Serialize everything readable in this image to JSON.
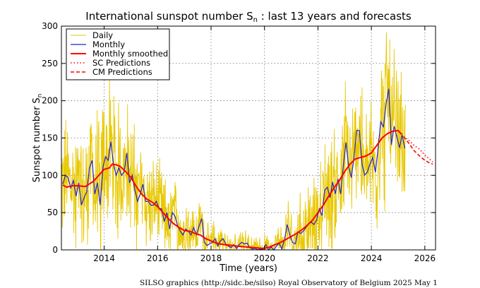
{
  "chart_data": {
    "type": "line",
    "title_main": "International sunspot number S",
    "title_sub": "n",
    "title_rest": " : last 13 years and forecasts",
    "ylabel_main": "Sunspot number S",
    "ylabel_sub": "n",
    "xlabel": "Time (years)",
    "xlim": [
      2012.4,
      2026.4
    ],
    "ylim": [
      0,
      300
    ],
    "xticks": [
      2014,
      2016,
      2018,
      2020,
      2022,
      2024,
      2026
    ],
    "yticks": [
      0,
      50,
      100,
      150,
      200,
      250,
      300
    ],
    "grid": true,
    "legend_position": "top-left",
    "legend": [
      "Daily",
      "Monthly",
      "Monthly smoothed",
      "SC Predictions",
      "CM Predictions"
    ],
    "colors": {
      "daily": "#e8c800",
      "monthly": "#2424c8",
      "smoothed": "#ff0000",
      "prediction": "#ff0000"
    },
    "monthly_anchors": [
      [
        2012.45,
        88
      ],
      [
        2012.55,
        100
      ],
      [
        2012.65,
        97
      ],
      [
        2012.75,
        83
      ],
      [
        2012.85,
        93
      ],
      [
        2012.95,
        72
      ],
      [
        2013.05,
        90
      ],
      [
        2013.15,
        60
      ],
      [
        2013.25,
        70
      ],
      [
        2013.35,
        78
      ],
      [
        2013.45,
        110
      ],
      [
        2013.55,
        120
      ],
      [
        2013.65,
        75
      ],
      [
        2013.75,
        90
      ],
      [
        2013.85,
        60
      ],
      [
        2013.95,
        110
      ],
      [
        2014.05,
        125
      ],
      [
        2014.15,
        120
      ],
      [
        2014.25,
        145
      ],
      [
        2014.35,
        115
      ],
      [
        2014.45,
        100
      ],
      [
        2014.55,
        110
      ],
      [
        2014.65,
        100
      ],
      [
        2014.75,
        105
      ],
      [
        2014.85,
        130
      ],
      [
        2014.95,
        90
      ],
      [
        2015.05,
        100
      ],
      [
        2015.15,
        80
      ],
      [
        2015.25,
        65
      ],
      [
        2015.35,
        75
      ],
      [
        2015.45,
        88
      ],
      [
        2015.55,
        65
      ],
      [
        2015.65,
        65
      ],
      [
        2015.75,
        60
      ],
      [
        2015.85,
        60
      ],
      [
        2015.95,
        65
      ],
      [
        2016.05,
        56
      ],
      [
        2016.15,
        55
      ],
      [
        2016.25,
        38
      ],
      [
        2016.35,
        50
      ],
      [
        2016.45,
        28
      ],
      [
        2016.55,
        50
      ],
      [
        2016.65,
        45
      ],
      [
        2016.75,
        32
      ],
      [
        2016.85,
        25
      ],
      [
        2016.95,
        20
      ],
      [
        2017.05,
        28
      ],
      [
        2017.15,
        25
      ],
      [
        2017.25,
        20
      ],
      [
        2017.35,
        30
      ],
      [
        2017.45,
        20
      ],
      [
        2017.55,
        32
      ],
      [
        2017.65,
        42
      ],
      [
        2017.75,
        10
      ],
      [
        2017.85,
        6
      ],
      [
        2017.95,
        8
      ],
      [
        2018.05,
        10
      ],
      [
        2018.15,
        15
      ],
      [
        2018.25,
        5
      ],
      [
        2018.35,
        12
      ],
      [
        2018.45,
        15
      ],
      [
        2018.55,
        8
      ],
      [
        2018.65,
        5
      ],
      [
        2018.75,
        3
      ],
      [
        2018.85,
        7
      ],
      [
        2018.95,
        2
      ],
      [
        2019.05,
        7
      ],
      [
        2019.15,
        10
      ],
      [
        2019.25,
        8
      ],
      [
        2019.35,
        9
      ],
      [
        2019.45,
        3
      ],
      [
        2019.55,
        1
      ],
      [
        2019.65,
        2
      ],
      [
        2019.75,
        0
      ],
      [
        2019.85,
        1
      ],
      [
        2019.95,
        1
      ],
      [
        2020.05,
        7
      ],
      [
        2020.15,
        0
      ],
      [
        2020.25,
        4
      ],
      [
        2020.35,
        0
      ],
      [
        2020.45,
        5
      ],
      [
        2020.55,
        9
      ],
      [
        2020.65,
        1
      ],
      [
        2020.75,
        14
      ],
      [
        2020.85,
        34
      ],
      [
        2020.95,
        20
      ],
      [
        2021.05,
        10
      ],
      [
        2021.15,
        8
      ],
      [
        2021.25,
        24
      ],
      [
        2021.35,
        22
      ],
      [
        2021.45,
        25
      ],
      [
        2021.55,
        30
      ],
      [
        2021.65,
        35
      ],
      [
        2021.75,
        37
      ],
      [
        2021.85,
        34
      ],
      [
        2021.95,
        40
      ],
      [
        2022.05,
        55
      ],
      [
        2022.15,
        46
      ],
      [
        2022.25,
        80
      ],
      [
        2022.35,
        84
      ],
      [
        2022.45,
        70
      ],
      [
        2022.55,
        91
      ],
      [
        2022.65,
        75
      ],
      [
        2022.75,
        95
      ],
      [
        2022.85,
        75
      ],
      [
        2022.95,
        113
      ],
      [
        2023.05,
        144
      ],
      [
        2023.15,
        111
      ],
      [
        2023.25,
        97
      ],
      [
        2023.35,
        124
      ],
      [
        2023.45,
        160
      ],
      [
        2023.55,
        160
      ],
      [
        2023.65,
        115
      ],
      [
        2023.75,
        100
      ],
      [
        2023.85,
        105
      ],
      [
        2023.95,
        115
      ],
      [
        2024.05,
        124
      ],
      [
        2024.15,
        104
      ],
      [
        2024.25,
        136
      ],
      [
        2024.35,
        172
      ],
      [
        2024.45,
        165
      ],
      [
        2024.55,
        196
      ],
      [
        2024.65,
        216
      ],
      [
        2024.75,
        141
      ],
      [
        2024.85,
        166
      ],
      [
        2024.95,
        152
      ],
      [
        2025.05,
        137
      ],
      [
        2025.15,
        154
      ],
      [
        2025.25,
        136
      ]
    ],
    "smoothed_anchors": [
      [
        2012.45,
        87
      ],
      [
        2012.6,
        84
      ],
      [
        2012.8,
        86
      ],
      [
        2013.0,
        86
      ],
      [
        2013.3,
        85
      ],
      [
        2013.6,
        92
      ],
      [
        2013.8,
        100
      ],
      [
        2014.0,
        108
      ],
      [
        2014.2,
        110
      ],
      [
        2014.3,
        115
      ],
      [
        2014.45,
        114
      ],
      [
        2014.6,
        112
      ],
      [
        2014.8,
        105
      ],
      [
        2015.0,
        97
      ],
      [
        2015.2,
        85
      ],
      [
        2015.4,
        75
      ],
      [
        2015.6,
        68
      ],
      [
        2015.8,
        64
      ],
      [
        2016.0,
        58
      ],
      [
        2016.2,
        50
      ],
      [
        2016.4,
        42
      ],
      [
        2016.6,
        35
      ],
      [
        2016.8,
        30
      ],
      [
        2017.0,
        26
      ],
      [
        2017.2,
        25
      ],
      [
        2017.4,
        22
      ],
      [
        2017.6,
        20
      ],
      [
        2017.8,
        15
      ],
      [
        2018.0,
        12
      ],
      [
        2018.2,
        9
      ],
      [
        2018.5,
        7
      ],
      [
        2018.8,
        6
      ],
      [
        2019.0,
        5
      ],
      [
        2019.3,
        4
      ],
      [
        2019.6,
        3
      ],
      [
        2019.9,
        2
      ],
      [
        2020.0,
        2
      ],
      [
        2020.2,
        4
      ],
      [
        2020.4,
        7
      ],
      [
        2020.6,
        10
      ],
      [
        2020.8,
        14
      ],
      [
        2021.0,
        18
      ],
      [
        2021.2,
        22
      ],
      [
        2021.4,
        27
      ],
      [
        2021.6,
        33
      ],
      [
        2021.8,
        40
      ],
      [
        2022.0,
        50
      ],
      [
        2022.2,
        60
      ],
      [
        2022.4,
        72
      ],
      [
        2022.6,
        83
      ],
      [
        2022.8,
        93
      ],
      [
        2023.0,
        105
      ],
      [
        2023.2,
        115
      ],
      [
        2023.4,
        122
      ],
      [
        2023.6,
        124
      ],
      [
        2023.8,
        126
      ],
      [
        2024.0,
        130
      ],
      [
        2024.2,
        140
      ],
      [
        2024.4,
        150
      ],
      [
        2024.6,
        156
      ],
      [
        2024.8,
        159
      ],
      [
        2025.0,
        160
      ],
      [
        2025.1,
        156
      ],
      [
        2025.15,
        155
      ]
    ],
    "sc_predictions": [
      [
        2025.2,
        152
      ],
      [
        2025.4,
        147
      ],
      [
        2025.6,
        140
      ],
      [
        2025.8,
        135
      ],
      [
        2026.0,
        127
      ],
      [
        2026.3,
        118
      ]
    ],
    "cm_predictions": [
      [
        2025.2,
        152
      ],
      [
        2025.4,
        143
      ],
      [
        2025.6,
        133
      ],
      [
        2025.8,
        126
      ],
      [
        2026.0,
        120
      ],
      [
        2026.2,
        116
      ],
      [
        2026.3,
        115
      ]
    ],
    "daily_spread": [
      [
        2012.4,
        80
      ],
      [
        2013.0,
        85
      ],
      [
        2014.0,
        100
      ],
      [
        2015.0,
        80
      ],
      [
        2016.0,
        60
      ],
      [
        2017.0,
        45
      ],
      [
        2018.0,
        25
      ],
      [
        2019.0,
        15
      ],
      [
        2020.0,
        20
      ],
      [
        2021.0,
        40
      ],
      [
        2022.0,
        75
      ],
      [
        2023.0,
        90
      ],
      [
        2024.0,
        95
      ],
      [
        2024.6,
        120
      ],
      [
        2025.3,
        80
      ]
    ]
  },
  "footer": "SILSO graphics (http://sidc.be/silso)  Royal Observatory of Belgium  2025 May 1"
}
